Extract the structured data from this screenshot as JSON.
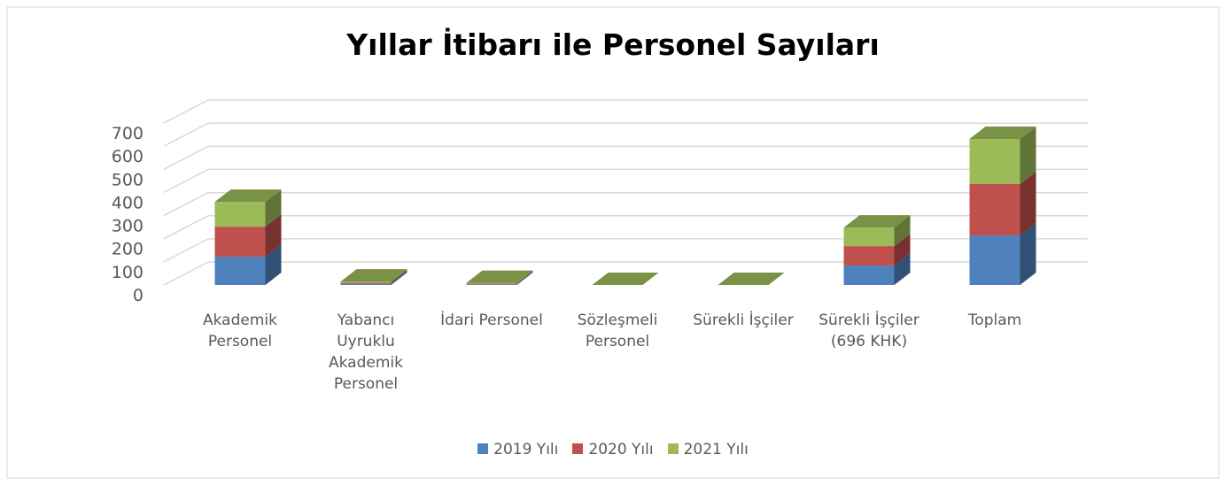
{
  "chart_data": {
    "type": "bar3d_stacked",
    "title": "Yıllar İtibarı ile Personel Sayıları",
    "categories": [
      "Akademik Personel",
      "Yabancı Uyruklu Akademik Personel",
      "İdari Personel",
      "Sözleşmeli Personel",
      "Sürekli İşçiler",
      "Sürekli İşçiler (696 KHK)",
      "Toplam"
    ],
    "series": [
      {
        "name": "2019 Yılı",
        "color": "#4f81bd",
        "values": [
          122,
          5,
          3,
          0,
          0,
          84,
          214
        ]
      },
      {
        "name": "2020 Yılı",
        "color": "#c0504d",
        "values": [
          130,
          5,
          3,
          0,
          0,
          84,
          222
        ]
      },
      {
        "name": "2021 Yılı",
        "color": "#9bbb59",
        "values": [
          107,
          5,
          3,
          0,
          0,
          80,
          195
        ]
      }
    ],
    "ylim": [
      0,
      700
    ],
    "yticks": [
      0,
      100,
      200,
      300,
      400,
      500,
      600,
      700
    ],
    "grid": true,
    "legend": "bottom"
  }
}
